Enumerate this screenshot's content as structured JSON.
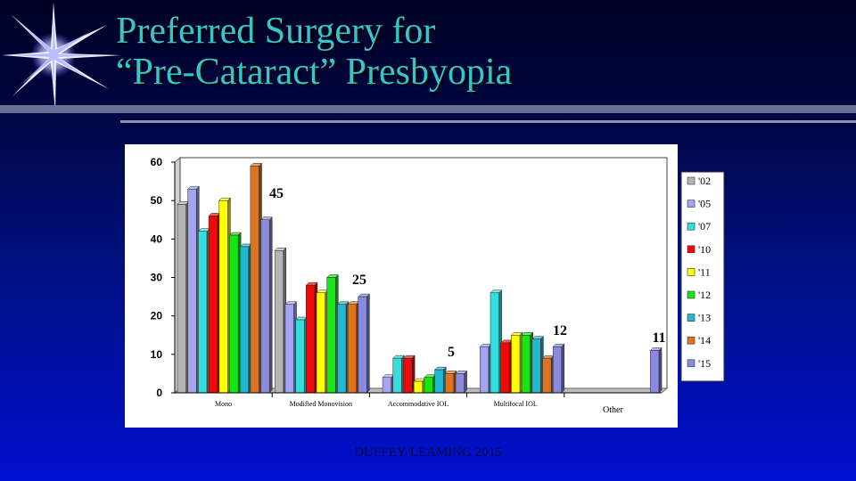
{
  "slide": {
    "title_line1": "Preferred Surgery for",
    "title_line2": "“Pre-Cataract” Presbyopia",
    "footer": "DUFFEY/LEAMING 2015"
  },
  "colors": {
    "title": "#37c6c6",
    "series": [
      "#b4b4b4",
      "#a4a4f4",
      "#34dede",
      "#ee0a0a",
      "#ffff00",
      "#16e616",
      "#22b8d2",
      "#de7420",
      "#8a8ae0"
    ]
  },
  "chart_data": {
    "type": "bar",
    "style": "3d-clustered",
    "categories": [
      "Mono",
      "Modified Monovision",
      "Accommodative IOL",
      "Multifocal IOL",
      "Other"
    ],
    "series": [
      {
        "name": "'02",
        "values": [
          49,
          37,
          0,
          0,
          0
        ]
      },
      {
        "name": "'05",
        "values": [
          53,
          23,
          4,
          12,
          0
        ]
      },
      {
        "name": "'07",
        "values": [
          42,
          19,
          9,
          26,
          0
        ]
      },
      {
        "name": "'10",
        "values": [
          46,
          28,
          9,
          13,
          0
        ]
      },
      {
        "name": "'11",
        "values": [
          50,
          26,
          3,
          15,
          0
        ]
      },
      {
        "name": "'12",
        "values": [
          41,
          30,
          4,
          15,
          0
        ]
      },
      {
        "name": "'13",
        "values": [
          38,
          23,
          6,
          14,
          0
        ]
      },
      {
        "name": "'14",
        "values": [
          59,
          23,
          5,
          9,
          0
        ]
      },
      {
        "name": "'15",
        "values": [
          45,
          25,
          5,
          12,
          11
        ]
      }
    ],
    "annotations": [
      "45",
      "25",
      "5",
      "12",
      "11"
    ],
    "yticks": [
      "0",
      "10",
      "20",
      "30",
      "40",
      "50",
      "60"
    ],
    "ylim": [
      0,
      60
    ],
    "legend_position": "right",
    "grid": false
  }
}
